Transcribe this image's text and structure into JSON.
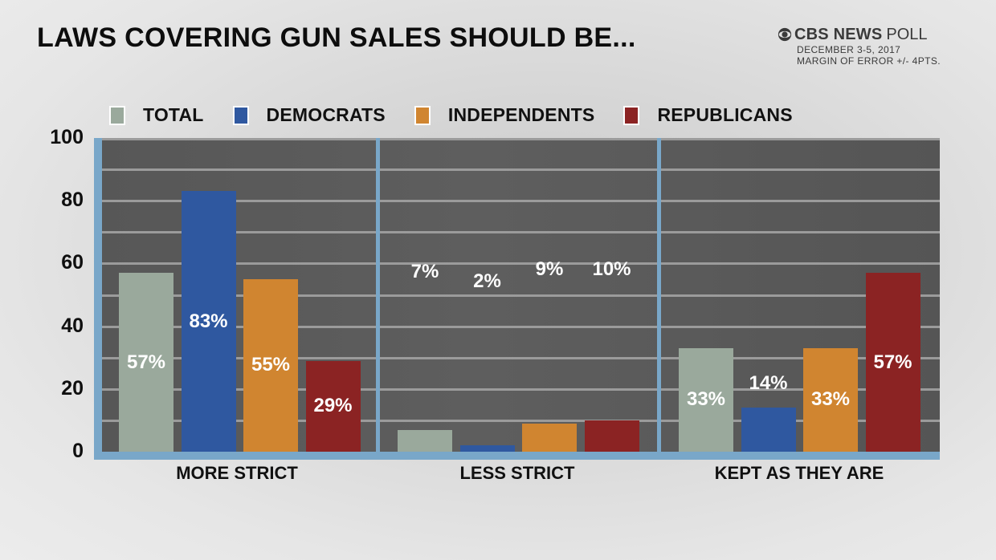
{
  "header": {
    "title": "LAWS COVERING GUN SALES SHOULD BE...",
    "brand": "CBS NEWS",
    "brand_suffix": "POLL",
    "date": "DECEMBER 3-5, 2017",
    "margin": "MARGIN OF ERROR +/- 4PTS."
  },
  "legend": [
    {
      "label": "TOTAL",
      "color": "#9aa99c"
    },
    {
      "label": "DEMOCRATS",
      "color": "#2f58a0"
    },
    {
      "label": "INDEPENDENTS",
      "color": "#d08530"
    },
    {
      "label": "REPUBLICANS",
      "color": "#8b2323"
    }
  ],
  "yaxis": {
    "ticks": [
      "100",
      "80",
      "60",
      "40",
      "20",
      "0"
    ]
  },
  "categories_display": [
    "MORE STRICT",
    "LESS STRICT",
    "KEPT AS THEY ARE"
  ],
  "chart_data": {
    "type": "bar",
    "title": "LAWS COVERING GUN SALES SHOULD BE...",
    "subtitle": "CBS NEWS POLL — DECEMBER 3-5, 2017 — MARGIN OF ERROR +/- 4PTS.",
    "categories": [
      "MORE STRICT",
      "LESS STRICT",
      "KEPT AS THEY ARE"
    ],
    "series": [
      {
        "name": "TOTAL",
        "color": "#9aa99c",
        "values": [
          57,
          7,
          33
        ]
      },
      {
        "name": "DEMOCRATS",
        "color": "#2f58a0",
        "values": [
          83,
          2,
          14
        ]
      },
      {
        "name": "INDEPENDENTS",
        "color": "#d08530",
        "values": [
          55,
          9,
          33
        ]
      },
      {
        "name": "REPUBLICANS",
        "color": "#8b2323",
        "values": [
          29,
          10,
          57
        ]
      }
    ],
    "data_labels": [
      [
        "57%",
        "83%",
        "55%",
        "29%"
      ],
      [
        "7%",
        "2%",
        "9%",
        "10%"
      ],
      [
        "33%",
        "14%",
        "33%",
        "57%"
      ]
    ],
    "xlabel": "",
    "ylabel": "",
    "ylim": [
      0,
      100
    ],
    "yticks": [
      0,
      20,
      40,
      60,
      80,
      100
    ],
    "grid": true,
    "legend_position": "top"
  }
}
